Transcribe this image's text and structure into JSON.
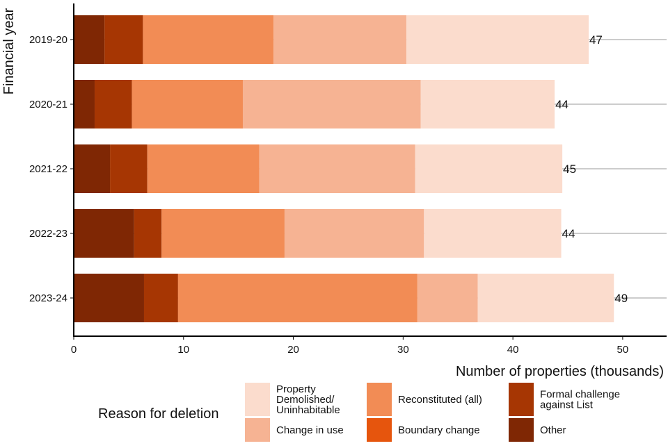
{
  "chart_data": {
    "type": "bar",
    "orientation": "horizontal",
    "stacked": true,
    "categories": [
      "2019-20",
      "2020-21",
      "2021-22",
      "2022-23",
      "2023-24"
    ],
    "series": [
      {
        "name": "Other",
        "color": "#7f2704",
        "values": [
          2.8,
          1.9,
          3.3,
          5.5,
          6.4
        ]
      },
      {
        "name": "Formal challenge against List",
        "color": "#a63603",
        "values": [
          3.5,
          3.4,
          3.4,
          2.5,
          3.1
        ]
      },
      {
        "name": "Boundary change",
        "color": "#e6550d",
        "values": [
          0,
          0,
          0,
          0,
          0
        ]
      },
      {
        "name": "Reconstituted (all)",
        "color": "#f28c55",
        "values": [
          11.9,
          10.1,
          10.2,
          11.2,
          21.8
        ]
      },
      {
        "name": "Change in use",
        "color": "#f6b393",
        "values": [
          12.1,
          16.2,
          14.2,
          12.7,
          5.5
        ]
      },
      {
        "name": "Property Demolished/ Uninhabitable",
        "color": "#fbdccd",
        "values": [
          16.6,
          12.2,
          13.4,
          12.5,
          12.4
        ]
      }
    ],
    "totals": [
      "47",
      "44",
      "45",
      "44",
      "49"
    ],
    "xlabel": "Number of properties (thousands)",
    "ylabel": "Financial year",
    "xlim": [
      0,
      54
    ],
    "xticks": [
      0,
      10,
      20,
      30,
      40,
      50
    ],
    "grid": "horizontal reference lines at each category",
    "legend": {
      "title": "Reason for deletion",
      "placement": "bottom",
      "items": [
        {
          "label_lines": [
            "Property",
            "Demolished/",
            "Uninhabitable"
          ],
          "color": "#fbdccd"
        },
        {
          "label_lines": [
            "Change in use"
          ],
          "color": "#f6b393"
        },
        {
          "label_lines": [
            "Reconstituted (all)"
          ],
          "color": "#f28c55"
        },
        {
          "label_lines": [
            "Boundary change"
          ],
          "color": "#e6550d"
        },
        {
          "label_lines": [
            "Formal challenge",
            "against List"
          ],
          "color": "#a63603"
        },
        {
          "label_lines": [
            "Other"
          ],
          "color": "#7f2704"
        }
      ]
    }
  }
}
